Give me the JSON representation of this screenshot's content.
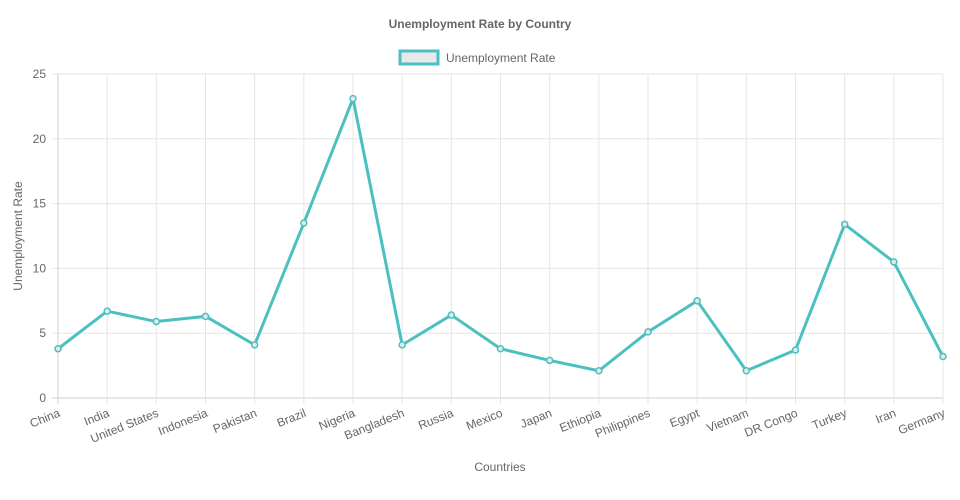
{
  "chart_data": {
    "type": "line",
    "title": "Unemployment Rate by Country",
    "xlabel": "Countries",
    "ylabel": "Unemployment Rate",
    "categories": [
      "China",
      "India",
      "United States",
      "Indonesia",
      "Pakistan",
      "Brazil",
      "Nigeria",
      "Bangladesh",
      "Russia",
      "Mexico",
      "Japan",
      "Ethiopia",
      "Philippines",
      "Egypt",
      "Vietnam",
      "DR Congo",
      "Turkey",
      "Iran",
      "Germany"
    ],
    "series": [
      {
        "name": "Unemployment Rate",
        "values": [
          3.8,
          6.7,
          5.9,
          6.3,
          4.1,
          13.5,
          23.1,
          4.1,
          6.4,
          3.8,
          2.9,
          2.1,
          5.1,
          7.5,
          2.1,
          3.7,
          13.4,
          10.5,
          3.2
        ],
        "color": "#4bc0c0",
        "fill": "#e8e8e8"
      }
    ],
    "ylim": [
      0,
      25
    ],
    "yticks": [
      "0",
      "5",
      "10",
      "15",
      "20",
      "25"
    ],
    "grid": true,
    "legend_position": "top-center"
  }
}
